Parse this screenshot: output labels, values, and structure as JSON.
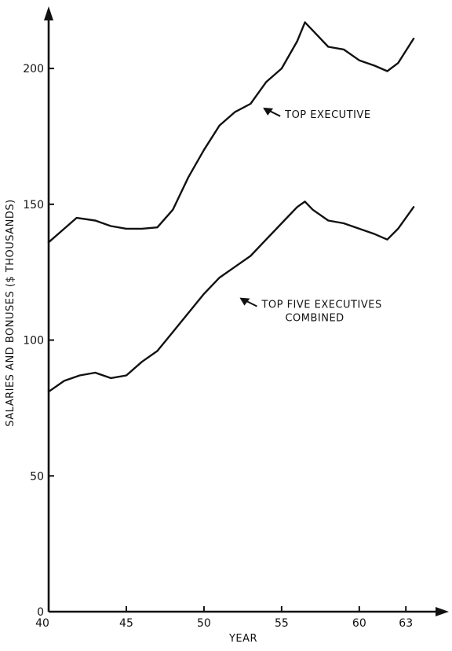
{
  "chart_data": {
    "type": "line",
    "title": "",
    "xlabel": "YEAR",
    "ylabel": "SALARIES AND BONUSES ($ THOUSANDS)",
    "xlim": [
      40,
      64
    ],
    "ylim": [
      0,
      220
    ],
    "xticks": [
      40,
      45,
      50,
      55,
      60,
      63
    ],
    "yticks": [
      0,
      50,
      100,
      150,
      200
    ],
    "grid": false,
    "series": [
      {
        "name": "TOP EXECUTIVE",
        "x": [
          40,
          40.8,
          41.8,
          43,
          44,
          45,
          46,
          47,
          48,
          49,
          50,
          51,
          52,
          53,
          54,
          55,
          56,
          56.5,
          57,
          58,
          59,
          60,
          61,
          61.8,
          62.5,
          63.5
        ],
        "y": [
          136,
          140,
          145,
          144,
          142,
          141,
          141,
          141.5,
          148,
          160,
          170,
          179,
          184,
          187,
          195,
          200,
          210,
          217,
          214,
          208,
          207,
          203,
          201,
          199,
          202,
          211
        ]
      },
      {
        "name": "TOP FIVE EXECUTIVES\nCOMBINED",
        "x": [
          40,
          41,
          42,
          43,
          44,
          45,
          46,
          47,
          48,
          49,
          50,
          51,
          52,
          53,
          54,
          55,
          56,
          56.5,
          57,
          58,
          59,
          60,
          61,
          61.8,
          62.5,
          63.5
        ],
        "y": [
          81,
          85,
          87,
          88,
          86,
          87,
          92,
          96,
          103,
          110,
          117,
          123,
          127,
          131,
          137,
          143,
          149,
          151,
          148,
          144,
          143,
          141,
          139,
          137,
          141,
          149
        ]
      }
    ],
    "annotations": [
      {
        "text": "TOP EXECUTIVE",
        "x": 53.8,
        "y": 183
      },
      {
        "text": "TOP FIVE EXECUTIVES\nCOMBINED",
        "x": 52.3,
        "y": 113
      }
    ]
  }
}
